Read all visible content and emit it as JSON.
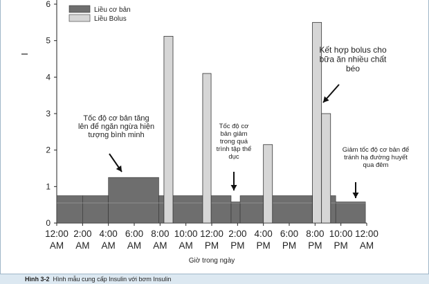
{
  "chart_data": {
    "type": "bar",
    "title": "",
    "xlabel": "Giờ trong ngày",
    "ylabel": "I",
    "ylim": [
      0,
      6
    ],
    "yticks": [
      0,
      1,
      2,
      3,
      4,
      5,
      6
    ],
    "xlim": [
      0,
      24
    ],
    "xticks": [
      {
        "x": 0,
        "line1": "12:00",
        "line2": "AM"
      },
      {
        "x": 2,
        "line1": "2:00",
        "line2": "AM"
      },
      {
        "x": 4,
        "line1": "4:00",
        "line2": "AM"
      },
      {
        "x": 6,
        "line1": "6:00",
        "line2": "AM"
      },
      {
        "x": 8,
        "line1": "8:00",
        "line2": "AM"
      },
      {
        "x": 10,
        "line1": "10:00",
        "line2": "AM"
      },
      {
        "x": 12,
        "line1": "12:00",
        "line2": "PM"
      },
      {
        "x": 14,
        "line1": "2:00",
        "line2": "PM"
      },
      {
        "x": 16,
        "line1": "4:00",
        "line2": "PM"
      },
      {
        "x": 18,
        "line1": "6:00",
        "line2": "PM"
      },
      {
        "x": 20,
        "line1": "8:00",
        "line2": "PM"
      },
      {
        "x": 22,
        "line1": "10:00",
        "line2": "PM"
      },
      {
        "x": 24,
        "line1": "12:00",
        "line2": "AM"
      }
    ],
    "legend": [
      {
        "label": "Liều cơ bản",
        "color": "#6e6e6e"
      },
      {
        "label": "Liều Bolus",
        "color": "#d6d6d6"
      }
    ],
    "series": [
      {
        "name": "Liều cơ bản",
        "color": "#6e6e6e",
        "steps": [
          {
            "x0": 0,
            "x1": 2,
            "y": 0.75
          },
          {
            "x0": 2,
            "x1": 4,
            "y": 0.75
          },
          {
            "x0": 4,
            "x1": 7.9,
            "y": 1.25
          },
          {
            "x0": 7.9,
            "x1": 13.5,
            "y": 0.75
          },
          {
            "x0": 13.5,
            "x1": 14.2,
            "y": 0.58
          },
          {
            "x0": 14.2,
            "x1": 19.8,
            "y": 0.75
          },
          {
            "x0": 19.8,
            "x1": 20.6,
            "y": 0.75
          },
          {
            "x0": 21.2,
            "x1": 21.6,
            "y": 0.75
          },
          {
            "x0": 21.6,
            "x1": 23.9,
            "y": 0.58
          }
        ]
      },
      {
        "name": "Liều Bolus",
        "color": "#d6d6d6",
        "bars": [
          {
            "x0": 8.3,
            "x1": 9.0,
            "y": 5.12
          },
          {
            "x0": 11.3,
            "x1": 11.95,
            "y": 4.1
          },
          {
            "x0": 16.0,
            "x1": 16.7,
            "y": 2.15
          },
          {
            "x0": 19.8,
            "x1": 20.5,
            "y": 5.5
          },
          {
            "x0": 20.5,
            "x1": 21.2,
            "y": 3.0
          }
        ]
      }
    ],
    "annotations": [
      {
        "lines": [
          "Tốc độ cơ bản tăng",
          "lên để ngăn ngừa hiện",
          "tượng bình minh"
        ]
      },
      {
        "lines": [
          "Tốc độ cơ",
          "bản giảm",
          "trong quá",
          "trình tập thể",
          "dục"
        ]
      },
      {
        "lines": [
          "Kết hợp bolus cho",
          "bữa ăn nhiều chất",
          "béo"
        ]
      },
      {
        "lines": [
          "Giảm tốc độ cơ bản để",
          "tránh hạ đường huyết",
          "qua đêm"
        ]
      }
    ]
  },
  "caption": {
    "label": "Hình 3-2",
    "text": "Hình mẫu cung cấp Insulin với bơm Insulin"
  }
}
